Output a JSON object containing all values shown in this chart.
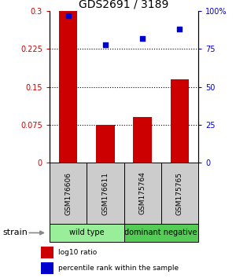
{
  "title": "GDS2691 / 3189",
  "samples": [
    "GSM176606",
    "GSM176611",
    "GSM175764",
    "GSM175765"
  ],
  "bar_values": [
    0.3,
    0.075,
    0.09,
    0.165
  ],
  "scatter_values": [
    97,
    78,
    82,
    88
  ],
  "bar_color": "#cc0000",
  "scatter_color": "#0000cc",
  "ylim_left": [
    0,
    0.3
  ],
  "ylim_right": [
    0,
    100
  ],
  "yticks_left": [
    0,
    0.075,
    0.15,
    0.225,
    0.3
  ],
  "ytick_labels_left": [
    "0",
    "0.075",
    "0.15",
    "0.225",
    "0.3"
  ],
  "yticks_right": [
    0,
    25,
    50,
    75,
    100
  ],
  "ytick_labels_right": [
    "0",
    "25",
    "50",
    "75",
    "100%"
  ],
  "gridlines_at": [
    0.075,
    0.15,
    0.225
  ],
  "groups": [
    {
      "label": "wild type",
      "spans": [
        0,
        1
      ],
      "color": "#99ee99"
    },
    {
      "label": "dominant negative",
      "spans": [
        2,
        3
      ],
      "color": "#55cc55"
    }
  ],
  "bar_width": 0.5,
  "background_color": "#ffffff",
  "sample_box_color": "#cccccc",
  "strain_label": "strain",
  "legend_items": [
    {
      "label": "log10 ratio",
      "color": "#cc0000"
    },
    {
      "label": "percentile rank within the sample",
      "color": "#0000cc"
    }
  ]
}
